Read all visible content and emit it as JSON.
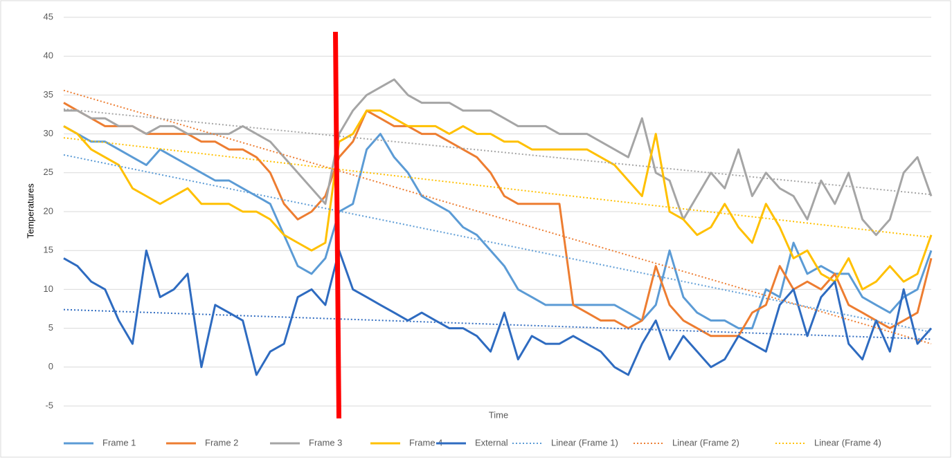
{
  "chart_data": {
    "type": "line",
    "xlabel": "Time",
    "ylabel": "Temperatures",
    "ylim": [
      -5,
      45
    ],
    "yticks": [
      -5,
      0,
      5,
      10,
      15,
      20,
      25,
      30,
      35,
      40,
      45
    ],
    "grid": true,
    "legend": "bottom",
    "series": [
      {
        "name": "Frame 1",
        "color": "#5b9bd5",
        "values": [
          31,
          30,
          29,
          29,
          28,
          27,
          26,
          28,
          27,
          26,
          25,
          24,
          24,
          23,
          22,
          21,
          17,
          13,
          12,
          14,
          20,
          21,
          28,
          30,
          27,
          25,
          22,
          21,
          20,
          18,
          17,
          15,
          13,
          10,
          9,
          8,
          8,
          8,
          8,
          8,
          8,
          7,
          6,
          8,
          15,
          9,
          7,
          6,
          6,
          5,
          5,
          10,
          9,
          16,
          12,
          13,
          12,
          12,
          9,
          8,
          7,
          9,
          10,
          15
        ]
      },
      {
        "name": "Frame 2",
        "color": "#ed7d31",
        "values": [
          34,
          33,
          32,
          31,
          31,
          31,
          30,
          30,
          30,
          30,
          29,
          29,
          28,
          28,
          27,
          25,
          21,
          19,
          20,
          22,
          27,
          29,
          33,
          32,
          31,
          31,
          30,
          30,
          29,
          28,
          27,
          25,
          22,
          21,
          21,
          21,
          21,
          8,
          7,
          6,
          6,
          5,
          6,
          13,
          8,
          6,
          5,
          4,
          4,
          4,
          7,
          8,
          13,
          10,
          11,
          10,
          12,
          8,
          7,
          6,
          5,
          6,
          7,
          14
        ]
      },
      {
        "name": "Frame 3",
        "color": "#a5a5a5",
        "values": [
          33,
          33,
          32,
          32,
          31,
          31,
          30,
          31,
          31,
          30,
          30,
          30,
          30,
          31,
          30,
          29,
          27,
          25,
          23,
          21,
          30,
          33,
          35,
          36,
          37,
          35,
          34,
          34,
          34,
          33,
          33,
          33,
          32,
          31,
          31,
          31,
          30,
          30,
          30,
          29,
          28,
          27,
          32,
          25,
          24,
          19,
          22,
          25,
          23,
          28,
          22,
          25,
          23,
          22,
          19,
          24,
          21,
          25,
          19,
          17,
          19,
          25,
          27,
          22
        ]
      },
      {
        "name": "Frame 4",
        "color": "#ffc000",
        "values": [
          31,
          30,
          28,
          27,
          26,
          23,
          22,
          21,
          22,
          23,
          21,
          21,
          21,
          20,
          20,
          19,
          17,
          16,
          15,
          16,
          29,
          30,
          33,
          33,
          32,
          31,
          31,
          31,
          30,
          31,
          30,
          30,
          29,
          29,
          28,
          28,
          28,
          28,
          28,
          27,
          26,
          24,
          22,
          30,
          20,
          19,
          17,
          18,
          21,
          18,
          16,
          21,
          18,
          14,
          15,
          12,
          11,
          14,
          10,
          11,
          13,
          11,
          12,
          17
        ]
      },
      {
        "name": "External",
        "color": "#2e6bc0",
        "values": [
          14,
          13,
          11,
          10,
          6,
          3,
          15,
          9,
          10,
          12,
          0,
          8,
          7,
          6,
          -1,
          2,
          3,
          9,
          10,
          8,
          15,
          10,
          9,
          8,
          7,
          6,
          7,
          6,
          5,
          5,
          4,
          2,
          7,
          1,
          4,
          3,
          3,
          4,
          3,
          2,
          0,
          -1,
          3,
          6,
          1,
          4,
          2,
          0,
          1,
          4,
          3,
          2,
          8,
          10,
          4,
          9,
          11,
          3,
          1,
          6,
          2,
          10,
          3,
          5
        ]
      }
    ],
    "trendlines": [
      {
        "name": "Linear (Frame 1)",
        "color": "#5b9bd5",
        "values": [
          27.3,
          4.5
        ]
      },
      {
        "name": "Linear (Frame 2)",
        "color": "#ed7d31",
        "values": [
          35.6,
          3
        ]
      },
      {
        "name": "Linear (Frame 4)",
        "color": "#ffc000",
        "values": [
          29.5,
          16.7
        ]
      },
      {
        "color": "#a5a5a5",
        "values": [
          33.2,
          22.2
        ]
      },
      {
        "color": "#2e6bc0",
        "values": [
          7.4,
          3.6
        ]
      }
    ]
  }
}
